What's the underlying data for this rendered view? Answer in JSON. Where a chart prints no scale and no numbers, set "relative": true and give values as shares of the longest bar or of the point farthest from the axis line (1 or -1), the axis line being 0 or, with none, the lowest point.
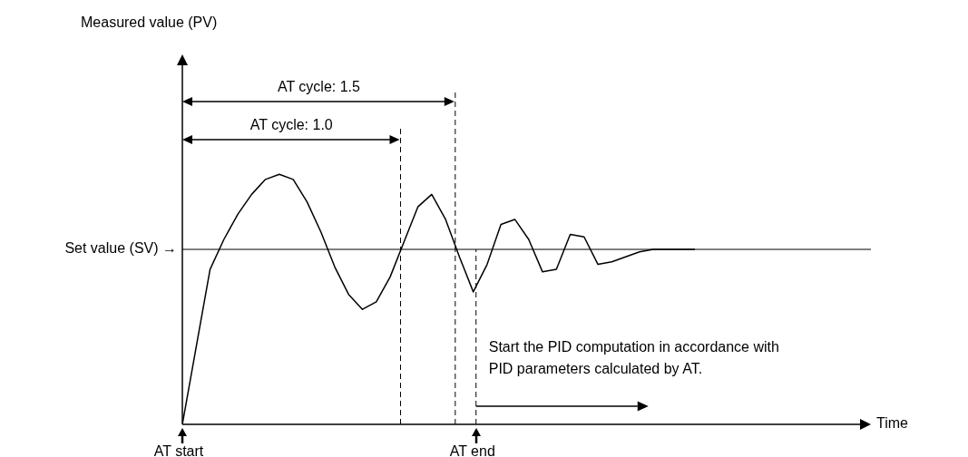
{
  "chart_data": {
    "type": "line",
    "relative": true,
    "marker": "none",
    "line_style": "solid",
    "legend": false,
    "categories": [
      null,
      null,
      null,
      null,
      null,
      null,
      null,
      null,
      null,
      null,
      null,
      null,
      null,
      null,
      null,
      null,
      null,
      null,
      null,
      null,
      null,
      null,
      null,
      null,
      null,
      null,
      null,
      null,
      null,
      null,
      null,
      null,
      null,
      null,
      null,
      null,
      null,
      null
    ],
    "series": [
      {
        "color": "#000000",
        "values": [
          0,
          0.31,
          0.62,
          0.74,
          0.84,
          0.92,
          0.98,
          1,
          0.98,
          0.89,
          0.77,
          0.63,
          0.52,
          0.46,
          0.49,
          0.59,
          0.73,
          0.87,
          0.92,
          0.82,
          0.67,
          0.53,
          0.64,
          0.8,
          0.82,
          0.74,
          0.61,
          0.62,
          0.76,
          0.75,
          0.64,
          0.65,
          0.67,
          0.69,
          0.7,
          0.7,
          0.7,
          0.7
        ]
      }
    ],
    "ref_lines": [
      {
        "axis": "y",
        "value": 0.7,
        "label": "Set value (SV) →",
        "color": "#000000",
        "line_style": "solid"
      }
    ],
    "annotations": [
      "Measured value (PV)",
      "Time",
      "AT cycle: 1.0",
      "AT cycle: 1.5",
      "AT start",
      "AT end",
      "Start the PID computation in accordance with\nPID parameters calculated by AT."
    ]
  }
}
